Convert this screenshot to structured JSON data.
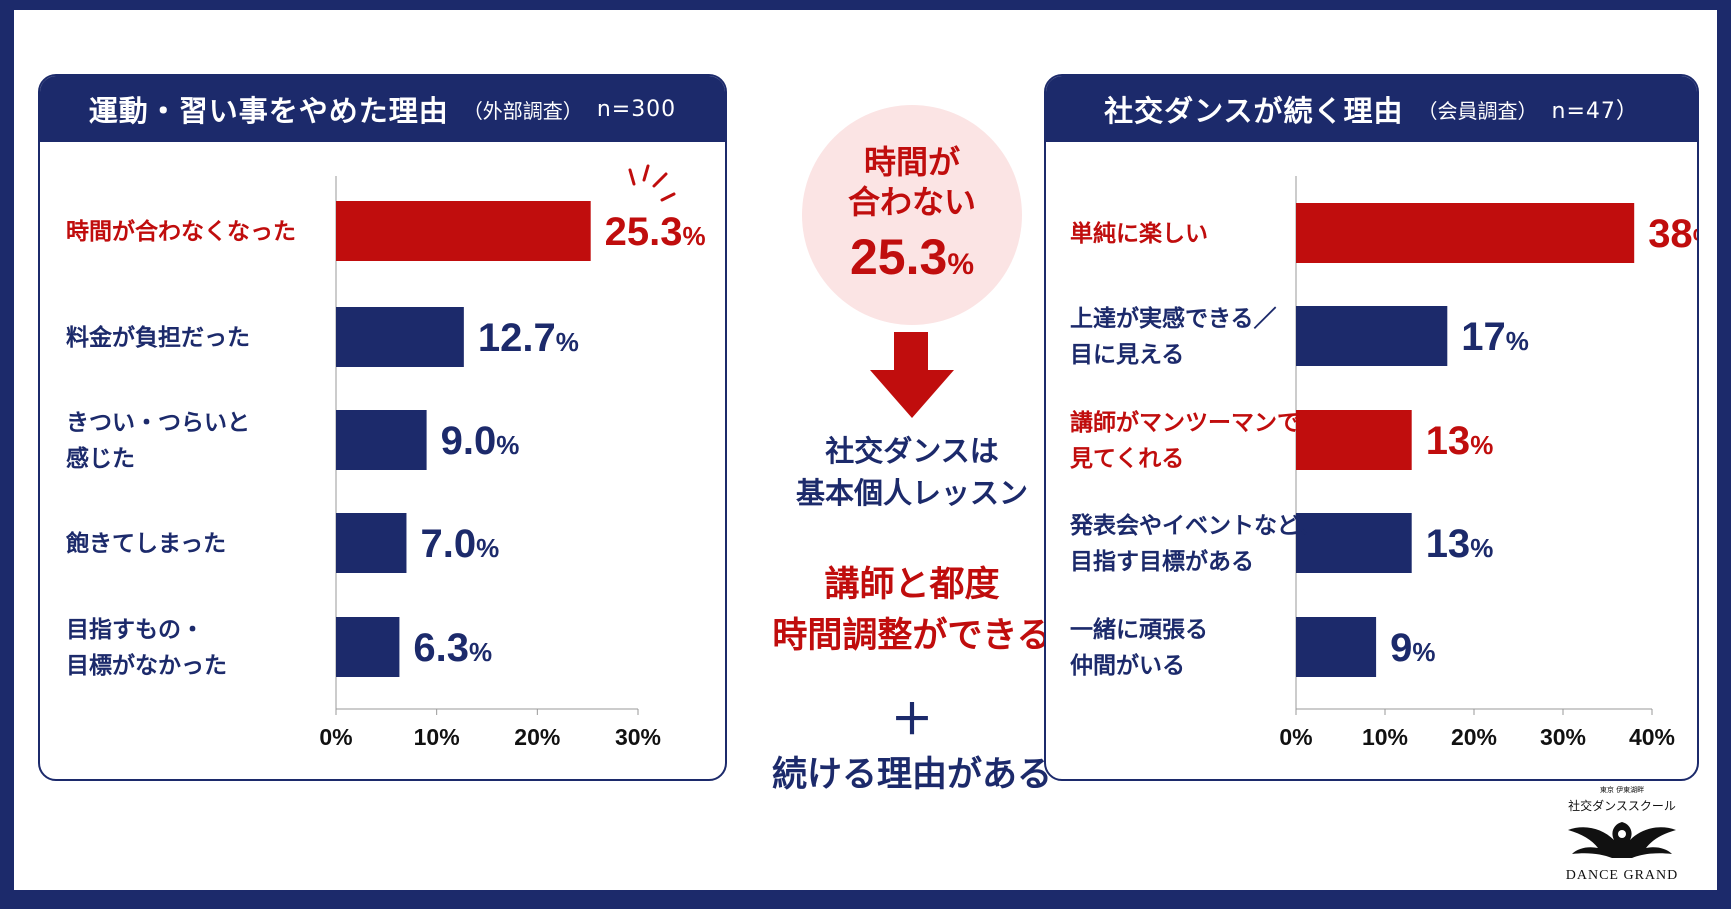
{
  "left": {
    "title": "運動・習い事をやめた理由",
    "subtitle": "（外部調査）",
    "n_label": "n=300"
  },
  "right": {
    "title": "社交ダンスが続く理由",
    "subtitle": "（会員調査）",
    "n_label": "n=47）"
  },
  "center": {
    "circle_line1": "時間が",
    "circle_line2": "合わない",
    "circle_value": "25.3",
    "circle_unit": "%",
    "blue_line1": "社交ダンスは",
    "blue_line2": "基本個人レッスン",
    "red_line1": "講師と都度",
    "red_line2": "時間調整ができる",
    "plus": "＋",
    "bottom": "続ける理由がある"
  },
  "logo": {
    "small": "東京 伊東湖畔",
    "name": "社交ダンススクール",
    "brand": "DANCE GRAND"
  },
  "colors": {
    "navy": "#1c2a6b",
    "red": "#c00d0d",
    "pink": "#fbe4e4"
  },
  "chart_data": [
    {
      "type": "bar",
      "orientation": "horizontal",
      "title": "運動・習い事をやめた理由（外部調査） n=300",
      "categories": [
        [
          "時間が合わなくなった"
        ],
        [
          "料金が負担だった"
        ],
        [
          "きつい・つらいと",
          "感じた"
        ],
        [
          "飽きてしまった"
        ],
        [
          "目指すもの・",
          "目標がなかった"
        ]
      ],
      "values": [
        25.3,
        12.7,
        9.0,
        7.0,
        6.3
      ],
      "value_labels": [
        "25.3",
        "12.7",
        "9.0",
        "7.0",
        "6.3"
      ],
      "highlight": [
        true,
        false,
        false,
        false,
        false
      ],
      "xlim": [
        0,
        30
      ],
      "ticks": [
        "0%",
        "10%",
        "20%",
        "30%"
      ],
      "unit": "%",
      "grid": false
    },
    {
      "type": "bar",
      "orientation": "horizontal",
      "title": "社交ダンスが続く理由（会員調査） n=47",
      "categories": [
        [
          "単純に楽しい"
        ],
        [
          "上達が実感できる／",
          "目に見える"
        ],
        [
          "講師がマンツーマンで",
          "見てくれる"
        ],
        [
          "発表会やイベントなど、",
          "目指す目標がある"
        ],
        [
          "一緒に頑張る",
          "仲間がいる"
        ]
      ],
      "values": [
        38,
        17,
        13,
        13,
        9
      ],
      "value_labels": [
        "38",
        "17",
        "13",
        "13",
        "9"
      ],
      "highlight": [
        true,
        false,
        true,
        false,
        false
      ],
      "xlim": [
        0,
        40
      ],
      "ticks": [
        "0%",
        "10%",
        "20%",
        "30%",
        "40%"
      ],
      "unit": "%",
      "grid": false
    }
  ]
}
